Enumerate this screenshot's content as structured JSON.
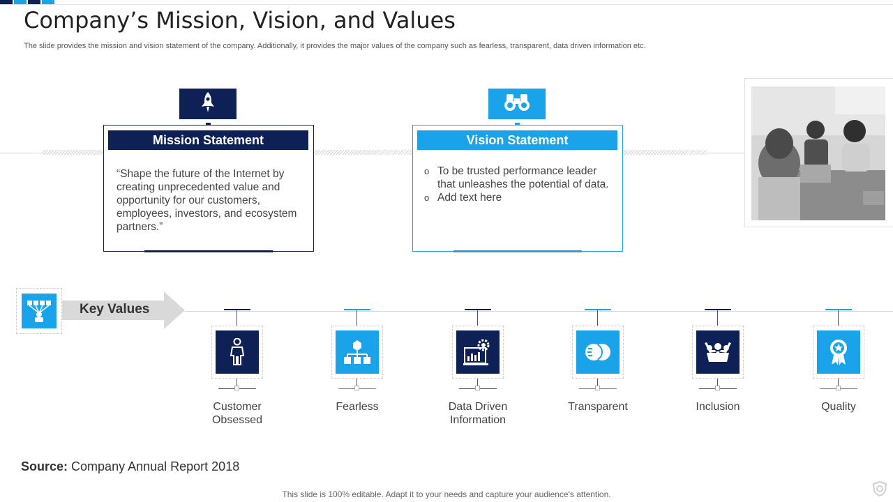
{
  "colors": {
    "navy": "#0d2157",
    "sky": "#1aa3e8",
    "gray_arrow": "#d9d9d9",
    "text": "#333333"
  },
  "header": {
    "title": "Company’s Mission, Vision, and Values",
    "subtitle": "The slide provides the mission and vision statement of the company. Additionally, it provides the major values of the company such as fearless, transparent, data driven information etc."
  },
  "mission": {
    "icon": "rocket-icon",
    "heading": "Mission Statement",
    "text": "“Shape the future  of the Internet  by creating unprecedented value and opportunity for our customers, employees, investors, and ecosystem partners.”"
  },
  "vision": {
    "icon": "binoculars-icon",
    "heading": "Vision Statement",
    "bullets": [
      "To be trusted performance leader that unleashes the potential of data.",
      "Add text here"
    ]
  },
  "photo": {
    "icon": "team-meeting-photo"
  },
  "key_values": {
    "icon": "organization-icon",
    "label": "Key Values",
    "items": [
      {
        "label": "Customer Obsessed",
        "icon": "person-icon",
        "theme": "navy"
      },
      {
        "label": "Fearless",
        "icon": "hierarchy-icon",
        "theme": "sky"
      },
      {
        "label": "Data Driven Information",
        "icon": "data-analytics-icon",
        "theme": "navy"
      },
      {
        "label": "Transparent",
        "icon": "transparent-circles-icon",
        "theme": "sky"
      },
      {
        "label": "Inclusion",
        "icon": "group-hug-icon",
        "theme": "navy"
      },
      {
        "label": "Quality",
        "icon": "quality-badge-icon",
        "theme": "sky"
      }
    ]
  },
  "source": {
    "label": "Source:",
    "text": "Company Annual Report 2018"
  },
  "footer": {
    "text": "This slide is 100% editable. Adapt it to your needs and capture your audience's attention."
  }
}
